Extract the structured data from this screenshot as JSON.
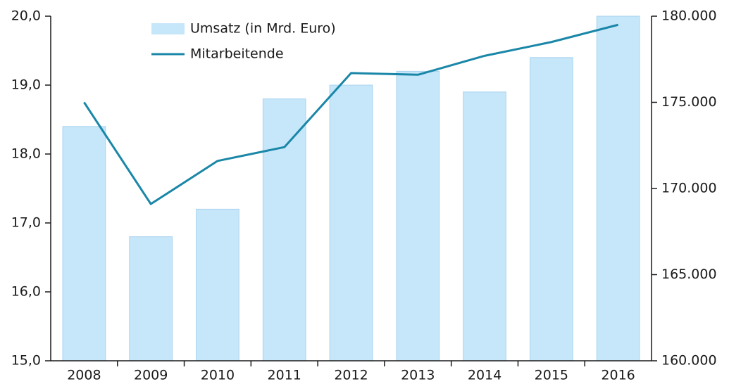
{
  "chart_data": {
    "type": "bar_line",
    "categories": [
      "2008",
      "2009",
      "2010",
      "2011",
      "2012",
      "2013",
      "2014",
      "2015",
      "2016"
    ],
    "series": [
      {
        "name": "Umsatz (in Mrd. Euro)",
        "type": "bar",
        "color": "#c6e6f9",
        "values": [
          18.4,
          16.8,
          17.2,
          18.8,
          19.0,
          19.2,
          18.9,
          19.4,
          20.0
        ]
      },
      {
        "name": "Mitarbeitende",
        "type": "line",
        "axis": "y2",
        "color": "#1a87a8",
        "values": [
          175000,
          169100,
          171600,
          172400,
          176700,
          176600,
          177700,
          178500,
          179500
        ]
      }
    ],
    "ylim": [
      15,
      20
    ],
    "yticks": [
      {
        "value": 15,
        "label": "15,0"
      },
      {
        "value": 16,
        "label": "16,0"
      },
      {
        "value": 17,
        "label": "17,0"
      },
      {
        "value": 18,
        "label": "18,0"
      },
      {
        "value": 19,
        "label": "19,0"
      },
      {
        "value": 20,
        "label": "20,0"
      }
    ],
    "y2lim": [
      160000,
      180000
    ],
    "y2ticks": [
      {
        "value": 160000,
        "label": "160.000"
      },
      {
        "value": 165000,
        "label": "165.000"
      },
      {
        "value": 170000,
        "label": "170.000"
      },
      {
        "value": 175000,
        "label": "175.000"
      },
      {
        "value": 180000,
        "label": "180.000"
      }
    ],
    "legend": "top-left"
  }
}
